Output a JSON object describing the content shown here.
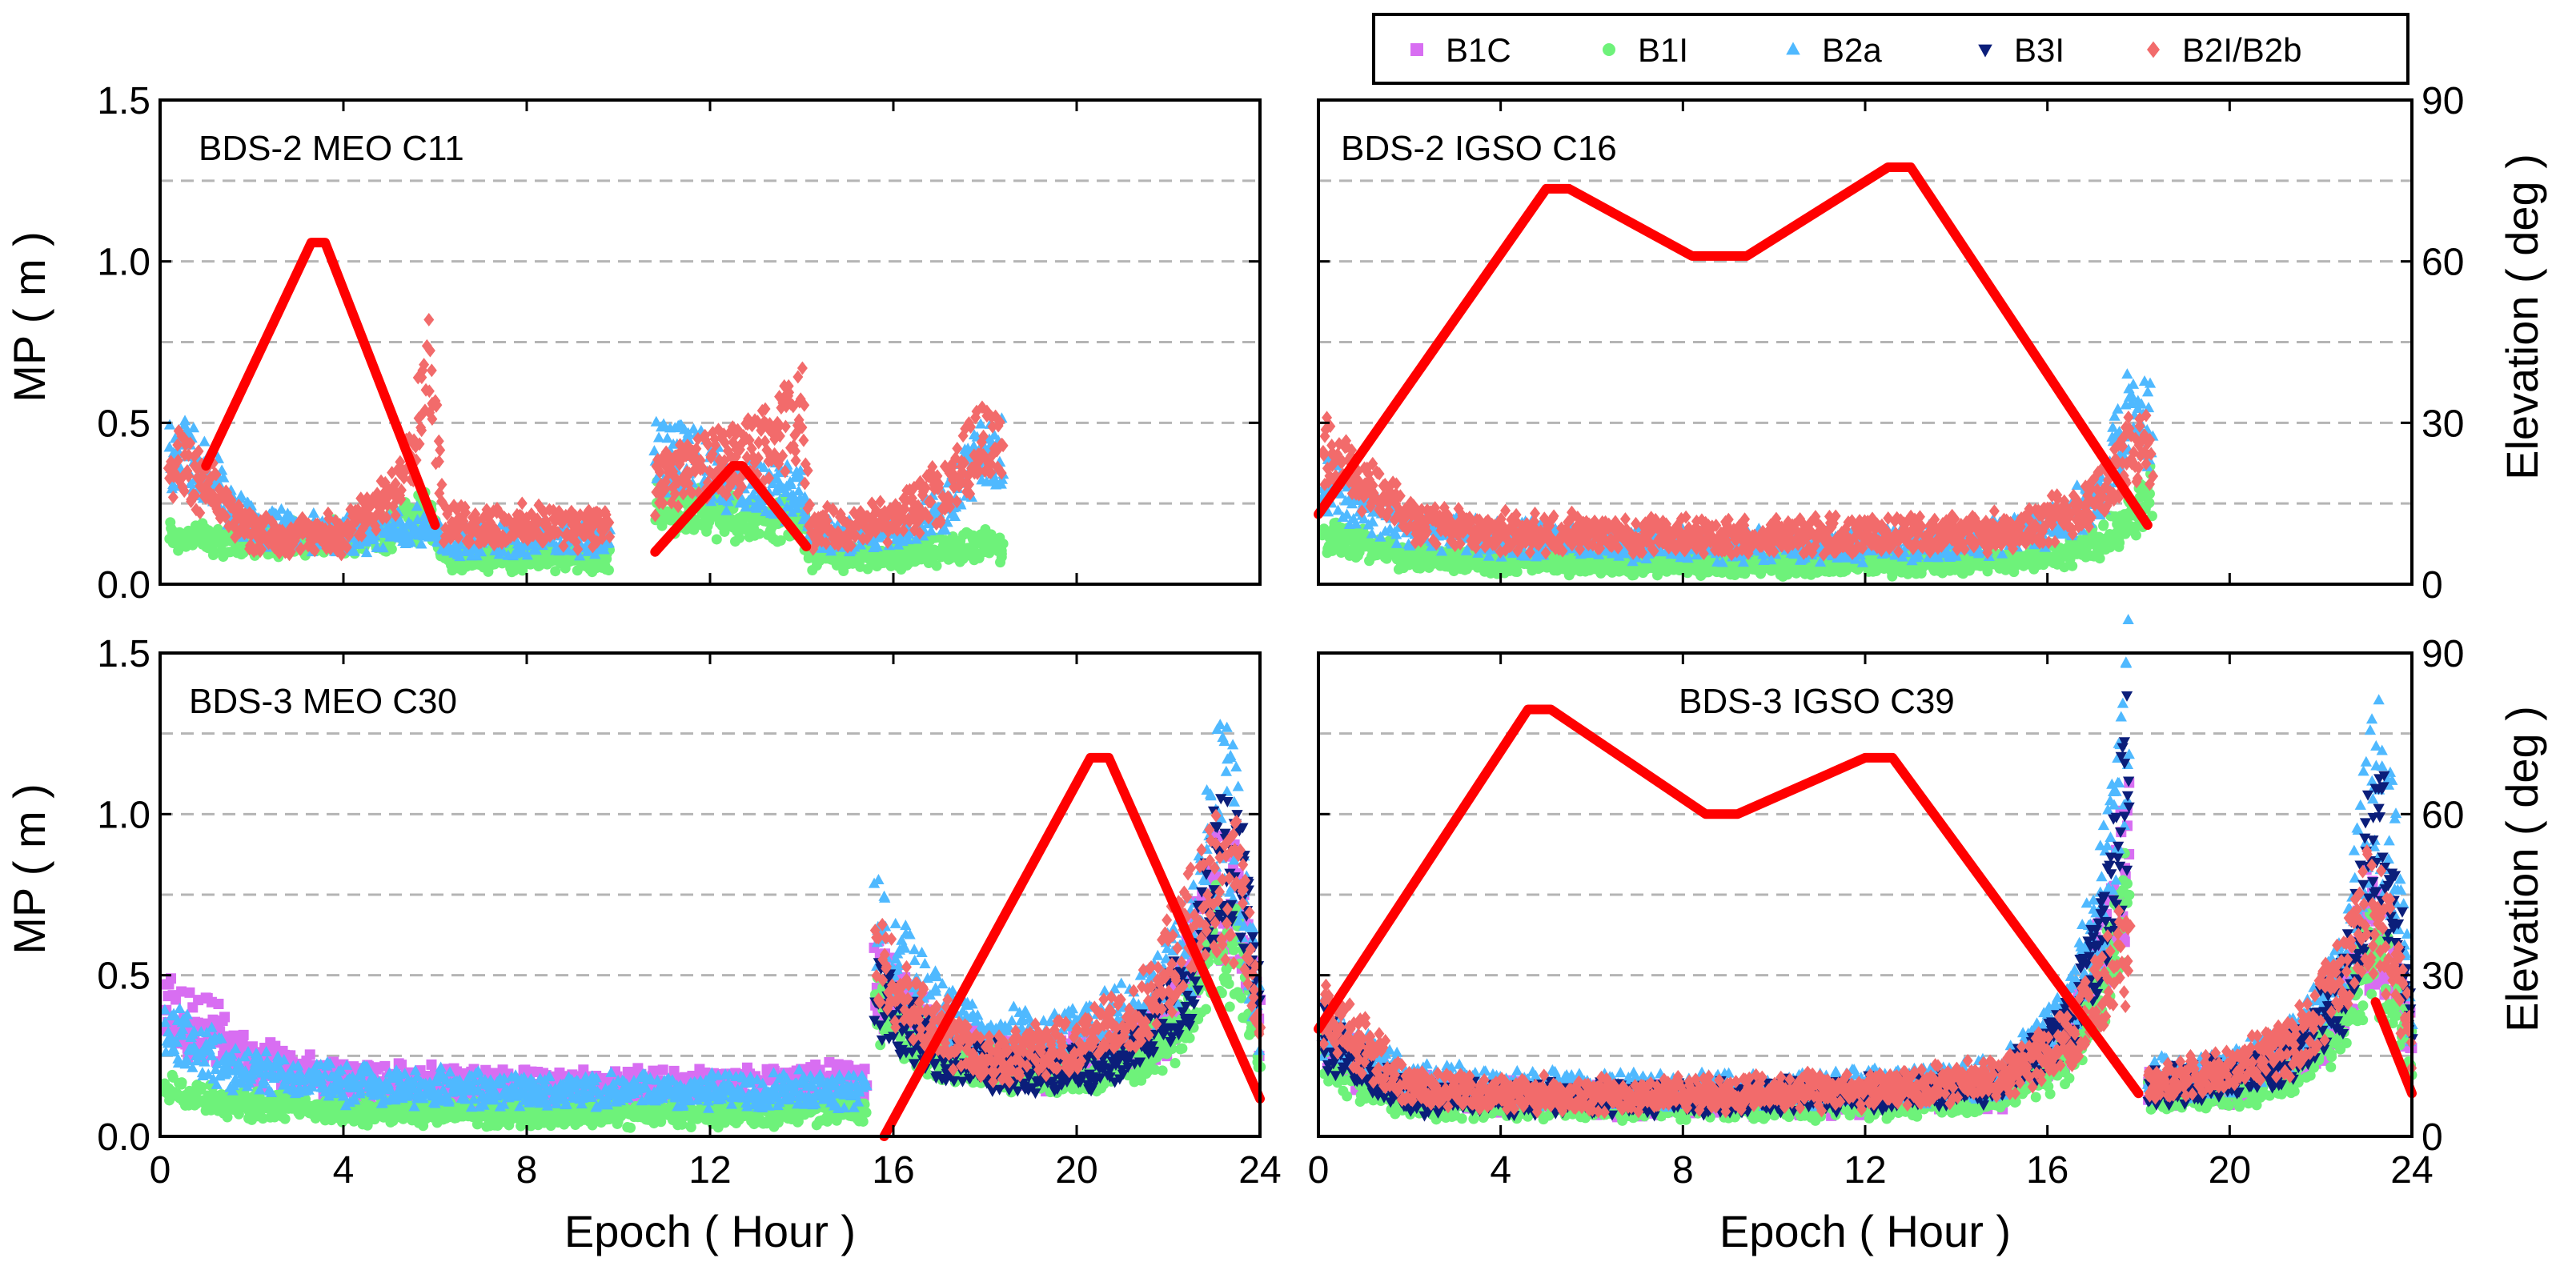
{
  "chart_data": {
    "type": "scatter",
    "legend": {
      "position": "top-right",
      "entries": [
        {
          "name": "B1C",
          "marker": "square",
          "color": "#d86ef2"
        },
        {
          "name": "B1I",
          "marker": "circle",
          "color": "#6ef27a"
        },
        {
          "name": "B2a",
          "marker": "triangle-up",
          "color": "#4fb9ff"
        },
        {
          "name": "B3I",
          "marker": "triangle-down",
          "color": "#0b1e7a"
        },
        {
          "name": "B2I/B2b",
          "marker": "diamond",
          "color": "#f26b6b"
        }
      ]
    },
    "elevation_color": "#ff0000",
    "x_axis": {
      "label": "Epoch ( Hour )",
      "range": [
        0,
        24
      ],
      "ticks": [
        "0",
        "4",
        "8",
        "12",
        "16",
        "20",
        "24"
      ]
    },
    "y_left": {
      "label": "MP ( m )",
      "range": [
        0,
        1.5
      ],
      "ticks": [
        "0.0",
        "0.5",
        "1.0",
        "1.5"
      ]
    },
    "y_right": {
      "label": "Elevation ( deg )",
      "range": [
        0,
        90
      ],
      "ticks": [
        "0",
        "30",
        "60",
        "90"
      ]
    },
    "panels": [
      {
        "id": "c11",
        "title": "BDS-2 MEO C11",
        "series": [
          {
            "name": "B1I",
            "segments": [
              {
                "x": [
                  0.2,
                  1,
                  2,
                  3,
                  4,
                  5,
                  5.9,
                  6.2,
                  8,
                  9.8
                ],
                "y": [
                  0.15,
                  0.14,
                  0.14,
                  0.14,
                  0.14,
                  0.17,
                  0.22,
                  0.08,
                  0.08,
                  0.08
                ]
              },
              {
                "x": [
                  10.8,
                  12,
                  13,
                  14,
                  14.2,
                  16,
                  17,
                  18,
                  18.4
                ],
                "y": [
                  0.25,
                  0.22,
                  0.2,
                  0.2,
                  0.09,
                  0.08,
                  0.1,
                  0.12,
                  0.12
                ]
              }
            ]
          },
          {
            "name": "B2a",
            "segments": [
              {
                "x": [
                  0.2,
                  0.8,
                  2,
                  4,
                  5.9,
                  6.2,
                  8,
                  9.8
                ],
                "y": [
                  0.42,
                  0.38,
                  0.18,
                  0.15,
                  0.18,
                  0.14,
                  0.14,
                  0.14
                ]
              },
              {
                "x": [
                  10.8,
                  11.5,
                  12.5,
                  13.5,
                  14,
                  14.2,
                  15,
                  16,
                  17,
                  17.8,
                  18.4
                ],
                "y": [
                  0.38,
                  0.42,
                  0.3,
                  0.28,
                  0.3,
                  0.16,
                  0.15,
                  0.16,
                  0.22,
                  0.38,
                  0.42
                ]
              }
            ]
          },
          {
            "name": "B2I/B2b",
            "segments": [
              {
                "x": [
                  0.2,
                  1,
                  2,
                  3,
                  4,
                  5,
                  5.5,
                  5.9,
                  6.2,
                  8,
                  9.8
                ],
                "y": [
                  0.38,
                  0.3,
                  0.16,
                  0.15,
                  0.16,
                  0.26,
                  0.45,
                  0.7,
                  0.18,
                  0.18,
                  0.18
                ]
              },
              {
                "x": [
                  10.8,
                  11.5,
                  12.5,
                  13.5,
                  14,
                  14.2,
                  15,
                  16,
                  17,
                  18,
                  18.4
                ],
                "y": [
                  0.3,
                  0.35,
                  0.38,
                  0.45,
                  0.55,
                  0.18,
                  0.17,
                  0.2,
                  0.28,
                  0.45,
                  0.45
                ]
              }
            ]
          }
        ],
        "elevation": [
          {
            "x": [
              1,
              3.3,
              3.6,
              6.0
            ],
            "y": [
              22,
              63.5,
              63.5,
              11
            ]
          },
          {
            "x": [
              10.8,
              12.5,
              12.7,
              14.1
            ],
            "y": [
              6,
              22,
              22,
              7
            ]
          }
        ]
      },
      {
        "id": "c16",
        "title": "BDS-2 IGSO C16",
        "series": [
          {
            "name": "B1I",
            "segments": [
              {
                "x": [
                  0.1,
                  1,
                  2,
                  4,
                  8,
                  12,
                  15,
                  16.5,
                  17.5,
                  18.3
                ],
                "y": [
                  0.15,
                  0.12,
                  0.08,
                  0.07,
                  0.06,
                  0.06,
                  0.07,
                  0.1,
                  0.16,
                  0.3
                ]
              }
            ]
          },
          {
            "name": "B2a",
            "segments": [
              {
                "x": [
                  0.1,
                  1,
                  2,
                  4,
                  8,
                  12,
                  15,
                  16.5,
                  17.3,
                  17.8,
                  18.3
                ],
                "y": [
                  0.32,
                  0.24,
                  0.18,
                  0.14,
                  0.12,
                  0.12,
                  0.14,
                  0.2,
                  0.32,
                  0.55,
                  0.48
                ]
              }
            ]
          },
          {
            "name": "B2I/B2b",
            "segments": [
              {
                "x": [
                  0.1,
                  1,
                  2,
                  4,
                  8,
                  12,
                  15,
                  16.5,
                  17.3,
                  17.8,
                  18.3
                ],
                "y": [
                  0.42,
                  0.32,
                  0.2,
                  0.16,
                  0.15,
                  0.15,
                  0.16,
                  0.22,
                  0.3,
                  0.4,
                  0.42
                ]
              }
            ]
          }
        ],
        "elevation": [
          {
            "x": [
              0,
              5.0,
              5.5,
              8.2,
              9.4,
              12.5,
              13.0,
              18.2
            ],
            "y": [
              13,
              73.5,
              73.5,
              61,
              61,
              77.5,
              77.5,
              11
            ]
          }
        ]
      },
      {
        "id": "c30",
        "title": "BDS-3 MEO C30",
        "series": [
          {
            "name": "B1C",
            "segments": [
              {
                "x": [
                  0.1,
                  1,
                  2,
                  4,
                  8,
                  12,
                  15.4
                ],
                "y": [
                  0.38,
                  0.34,
                  0.22,
                  0.17,
                  0.15,
                  0.15,
                  0.17
                ]
              },
              {
                "x": [
                  15.6,
                  17,
                  19,
                  21,
                  22,
                  22.5,
                  23,
                  23.5,
                  24
                ],
                "y": [
                  0.5,
                  0.3,
                  0.22,
                  0.25,
                  0.35,
                  0.55,
                  0.75,
                  0.7,
                  0.35
                ]
              }
            ]
          },
          {
            "name": "B1I",
            "segments": [
              {
                "x": [
                  0.1,
                  1,
                  2,
                  4,
                  8,
                  12,
                  15.4
                ],
                "y": [
                  0.14,
                  0.12,
                  0.1,
                  0.08,
                  0.07,
                  0.07,
                  0.08
                ]
              },
              {
                "x": [
                  15.6,
                  17,
                  19,
                  21,
                  22,
                  22.5,
                  23,
                  23.5,
                  24
                ],
                "y": [
                  0.4,
                  0.25,
                  0.2,
                  0.2,
                  0.3,
                  0.4,
                  0.6,
                  0.55,
                  0.3
                ]
              }
            ]
          },
          {
            "name": "B2a",
            "segments": [
              {
                "x": [
                  0.1,
                  1,
                  2,
                  4,
                  8,
                  12,
                  15.4
                ],
                "y": [
                  0.32,
                  0.26,
                  0.2,
                  0.16,
                  0.14,
                  0.14,
                  0.15
                ]
              },
              {
                "x": [
                  15.6,
                  16.5,
                  18,
                  20,
                  21.5,
                  22.5,
                  23.2,
                  23.6,
                  24
                ],
                "y": [
                  0.65,
                  0.45,
                  0.3,
                  0.3,
                  0.4,
                  0.6,
                  1.1,
                  0.8,
                  0.35
                ]
              }
            ]
          },
          {
            "name": "B3I",
            "segments": [
              {
                "x": [
                  15.6,
                  17,
                  19,
                  20.5,
                  21.5,
                  22.5,
                  23.2,
                  23.6,
                  24
                ],
                "y": [
                  0.45,
                  0.25,
                  0.2,
                  0.22,
                  0.3,
                  0.5,
                  0.9,
                  0.8,
                  0.4
                ]
              }
            ]
          },
          {
            "name": "B2I/B2b",
            "segments": [
              {
                "x": [
                  15.6,
                  16.5,
                  18,
                  20,
                  21.5,
                  22.5,
                  23,
                  23.6,
                  24
                ],
                "y": [
                  0.55,
                  0.38,
                  0.25,
                  0.28,
                  0.4,
                  0.65,
                  0.8,
                  0.75,
                  0.3
                ]
              }
            ]
          }
        ],
        "elevation": [
          {
            "x": [
              15.8,
              20.3,
              20.7,
              24
            ],
            "y": [
              0,
              70.5,
              70.5,
              7
            ]
          }
        ]
      },
      {
        "id": "c39",
        "title": "BDS-3 IGSO C39",
        "series": [
          {
            "name": "B1C",
            "segments": [
              {
                "x": [
                  0.1,
                  1,
                  2,
                  4,
                  8,
                  12,
                  15,
                  16.5,
                  17.3,
                  17.8
                ],
                "y": [
                  0.3,
                  0.2,
                  0.14,
                  0.12,
                  0.11,
                  0.12,
                  0.14,
                  0.3,
                  0.6,
                  0.9
                ]
              },
              {
                "x": [
                  18.2,
                  20,
                  21.5,
                  22.5,
                  23,
                  23.5,
                  24
                ],
                "y": [
                  0.15,
                  0.16,
                  0.25,
                  0.4,
                  0.65,
                  0.55,
                  0.3
                ]
              }
            ]
          },
          {
            "name": "B1I",
            "segments": [
              {
                "x": [
                  0.1,
                  1,
                  2,
                  4,
                  8,
                  12,
                  15,
                  16.5,
                  17.3,
                  17.8
                ],
                "y": [
                  0.25,
                  0.15,
                  0.1,
                  0.1,
                  0.1,
                  0.1,
                  0.12,
                  0.25,
                  0.5,
                  0.75
                ]
              },
              {
                "x": [
                  18.2,
                  20,
                  21.5,
                  22.5,
                  23,
                  23.5,
                  24
                ],
                "y": [
                  0.12,
                  0.14,
                  0.2,
                  0.35,
                  0.55,
                  0.5,
                  0.25
                ]
              }
            ]
          },
          {
            "name": "B2a",
            "segments": [
              {
                "x": [
                  0.1,
                  1,
                  2,
                  4,
                  8,
                  12,
                  15,
                  16.5,
                  17.3,
                  17.8
                ],
                "y": [
                  0.35,
                  0.25,
                  0.17,
                  0.15,
                  0.14,
                  0.15,
                  0.18,
                  0.4,
                  0.8,
                  1.3
                ]
              },
              {
                "x": [
                  18.2,
                  20,
                  21.5,
                  22.5,
                  23.2,
                  23.6,
                  24
                ],
                "y": [
                  0.18,
                  0.2,
                  0.3,
                  0.5,
                  1.15,
                  0.85,
                  0.35
                ]
              }
            ]
          },
          {
            "name": "B3I",
            "segments": [
              {
                "x": [
                  0.1,
                  1,
                  2,
                  4,
                  8,
                  12,
                  15,
                  16.5,
                  17.3,
                  17.8
                ],
                "y": [
                  0.3,
                  0.2,
                  0.12,
                  0.12,
                  0.12,
                  0.13,
                  0.16,
                  0.35,
                  0.7,
                  1.1
                ]
              },
              {
                "x": [
                  18.2,
                  20,
                  21.5,
                  22.5,
                  23.2,
                  23.6,
                  24
                ],
                "y": [
                  0.15,
                  0.18,
                  0.25,
                  0.45,
                  0.95,
                  0.8,
                  0.35
                ]
              }
            ]
          },
          {
            "name": "B2I/B2b",
            "segments": [
              {
                "x": [
                  0.1,
                  1,
                  2,
                  4,
                  8,
                  12,
                  15,
                  16.5,
                  17.3,
                  17.8
                ],
                "y": [
                  0.38,
                  0.28,
                  0.15,
                  0.13,
                  0.13,
                  0.14,
                  0.18,
                  0.3,
                  0.5,
                  0.6
                ]
              },
              {
                "x": [
                  18.2,
                  20,
                  21.5,
                  22.5,
                  23,
                  23.5,
                  24
                ],
                "y": [
                  0.16,
                  0.2,
                  0.3,
                  0.5,
                  0.7,
                  0.6,
                  0.3
                ]
              }
            ]
          }
        ],
        "elevation": [
          {
            "x": [
              0,
              4.6,
              5.1,
              8.5,
              9.2,
              12.0,
              12.6,
              18.0
            ],
            "y": [
              20,
              79.5,
              79.5,
              60,
              60,
              70.5,
              70.5,
              8
            ]
          },
          {
            "x": [
              23.2,
              24
            ],
            "y": [
              25,
              8
            ]
          }
        ]
      }
    ]
  }
}
